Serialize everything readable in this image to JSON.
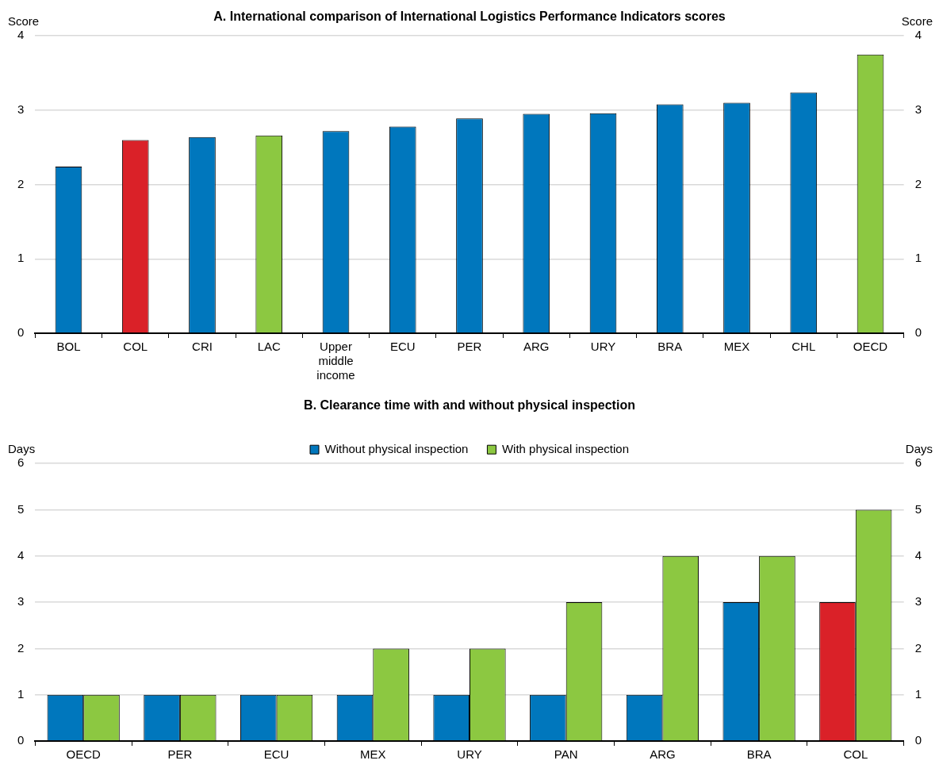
{
  "chart_data": [
    {
      "type": "bar",
      "title": "A. International comparison of International Logistics Performance Indicators scores",
      "ylabel": "Score",
      "y2label": "Score",
      "categories": [
        "BOL",
        "COL",
        "CRI",
        "LAC",
        "Upper middle income",
        "ECU",
        "PER",
        "ARG",
        "URY",
        "BRA",
        "MEX",
        "CHL",
        "OECD"
      ],
      "values": [
        2.24,
        2.6,
        2.64,
        2.66,
        2.72,
        2.78,
        2.89,
        2.95,
        2.96,
        3.08,
        3.1,
        3.24,
        3.75
      ],
      "colors": [
        "#0077bd",
        "#da2128",
        "#0077bd",
        "#8cc841",
        "#0077bd",
        "#0077bd",
        "#0077bd",
        "#0077bd",
        "#0077bd",
        "#0077bd",
        "#0077bd",
        "#0077bd",
        "#8cc841"
      ],
      "ylim": [
        0,
        4
      ],
      "yticks": [
        0,
        1,
        2,
        3,
        4
      ],
      "y2lim": [
        0,
        4
      ],
      "y2ticks": [
        0,
        1,
        2,
        3,
        4
      ],
      "grid": "y",
      "legend": false
    },
    {
      "type": "bar",
      "title": "B. Clearance time with and without physical inspection",
      "ylabel": "Days",
      "y2label": "Days",
      "categories": [
        "OECD",
        "PER",
        "ECU",
        "MEX",
        "URY",
        "PAN",
        "ARG",
        "BRA",
        "COL"
      ],
      "series": [
        {
          "name": "Without physical inspection",
          "color": "#0077bd",
          "colors": [
            "#0077bd",
            "#0077bd",
            "#0077bd",
            "#0077bd",
            "#0077bd",
            "#0077bd",
            "#0077bd",
            "#0077bd",
            "#da2128"
          ],
          "values": [
            1,
            1,
            1,
            1,
            1,
            1,
            1,
            3,
            3
          ]
        },
        {
          "name": "With physical inspection",
          "color": "#8cc841",
          "values": [
            1,
            1,
            1,
            2,
            2,
            3,
            4,
            4,
            5
          ]
        }
      ],
      "ylim": [
        0,
        6
      ],
      "yticks": [
        0,
        1,
        2,
        3,
        4,
        5,
        6
      ],
      "y2lim": [
        0,
        6
      ],
      "y2ticks": [
        0,
        1,
        2,
        3,
        4,
        5,
        6
      ],
      "grid": "y",
      "legend": "top"
    }
  ]
}
